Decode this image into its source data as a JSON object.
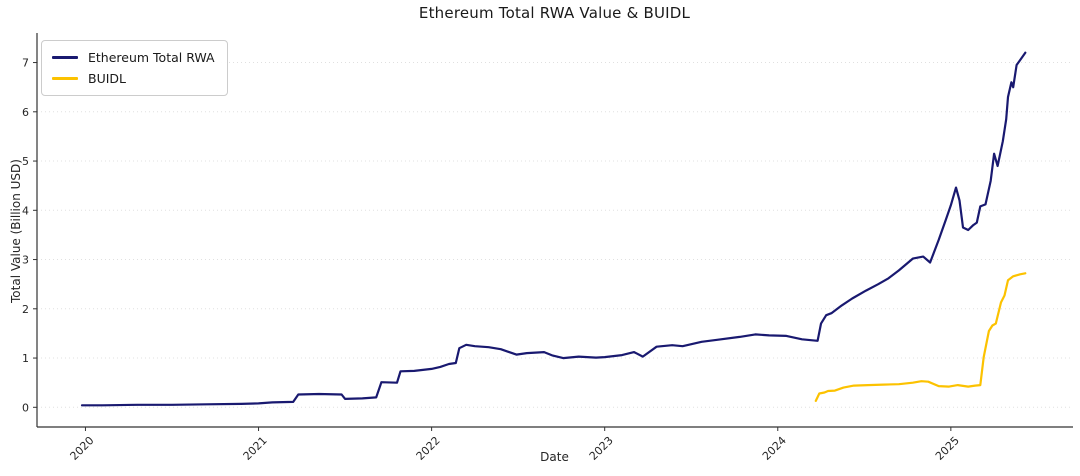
{
  "window": {
    "title": "Ethereum Total RWA Value & BUIDL"
  },
  "chart_data": {
    "type": "line",
    "title": "Ethereum Total RWA Value & BUIDL",
    "xlabel": "Date",
    "ylabel": "Total Value (Billion USD)",
    "xlim": [
      2019.72,
      2025.7
    ],
    "ylim": [
      -0.4,
      7.6
    ],
    "x_ticks": [
      2020,
      2021,
      2022,
      2023,
      2024,
      2025
    ],
    "x_tick_labels": [
      "2020",
      "2021",
      "2022",
      "2023",
      "2024",
      "2025"
    ],
    "y_ticks": [
      0,
      1,
      2,
      3,
      4,
      5,
      6,
      7
    ],
    "y_tick_labels": [
      "0",
      "1",
      "2",
      "3",
      "4",
      "5",
      "6",
      "7"
    ],
    "grid": "horizontal-dotted",
    "legend_position": "upper-left",
    "grid_color": "#e0e0e0",
    "axis_color": "#333333",
    "text_color": "#262626",
    "series": [
      {
        "name": "Ethereum Total RWA",
        "color": "#191970",
        "x": [
          2019.98,
          2020.1,
          2020.3,
          2020.5,
          2020.7,
          2020.9,
          2021.0,
          2021.08,
          2021.2,
          2021.23,
          2021.35,
          2021.48,
          2021.5,
          2021.6,
          2021.68,
          2021.71,
          2021.8,
          2021.82,
          2021.9,
          2022.0,
          2022.05,
          2022.1,
          2022.14,
          2022.16,
          2022.2,
          2022.25,
          2022.33,
          2022.4,
          2022.49,
          2022.55,
          2022.65,
          2022.7,
          2022.76,
          2022.85,
          2022.95,
          2023.0,
          2023.1,
          2023.17,
          2023.22,
          2023.3,
          2023.39,
          2023.45,
          2023.56,
          2023.65,
          2023.78,
          2023.87,
          2023.95,
          2024.05,
          2024.14,
          2024.2,
          2024.23,
          2024.25,
          2024.28,
          2024.31,
          2024.37,
          2024.43,
          2024.51,
          2024.58,
          2024.64,
          2024.7,
          2024.78,
          2024.84,
          2024.88,
          2024.93,
          2024.97,
          2025.0,
          2025.03,
          2025.05,
          2025.07,
          2025.1,
          2025.13,
          2025.15,
          2025.17,
          2025.2,
          2025.23,
          2025.25,
          2025.27,
          2025.3,
          2025.32,
          2025.33,
          2025.35,
          2025.36,
          2025.38,
          2025.4,
          2025.43
        ],
        "y": [
          0.04,
          0.04,
          0.05,
          0.05,
          0.06,
          0.07,
          0.08,
          0.1,
          0.11,
          0.26,
          0.27,
          0.26,
          0.17,
          0.18,
          0.2,
          0.51,
          0.5,
          0.73,
          0.74,
          0.78,
          0.82,
          0.88,
          0.9,
          1.2,
          1.27,
          1.24,
          1.22,
          1.18,
          1.07,
          1.1,
          1.12,
          1.05,
          1.0,
          1.03,
          1.01,
          1.02,
          1.06,
          1.12,
          1.03,
          1.23,
          1.26,
          1.24,
          1.33,
          1.37,
          1.43,
          1.48,
          1.46,
          1.45,
          1.38,
          1.36,
          1.35,
          1.7,
          1.87,
          1.91,
          2.07,
          2.21,
          2.37,
          2.5,
          2.62,
          2.78,
          3.02,
          3.06,
          2.94,
          3.4,
          3.8,
          4.1,
          4.46,
          4.2,
          3.65,
          3.6,
          3.7,
          3.75,
          4.08,
          4.12,
          4.6,
          5.15,
          4.9,
          5.4,
          5.85,
          6.3,
          6.6,
          6.5,
          6.95,
          7.05,
          7.2
        ]
      },
      {
        "name": "BUIDL",
        "color": "#fcc200",
        "x": [
          2024.22,
          2024.24,
          2024.27,
          2024.29,
          2024.33,
          2024.38,
          2024.44,
          2024.52,
          2024.61,
          2024.7,
          2024.78,
          2024.83,
          2024.87,
          2024.93,
          2024.99,
          2025.04,
          2025.1,
          2025.14,
          2025.17,
          2025.19,
          2025.22,
          2025.24,
          2025.26,
          2025.29,
          2025.31,
          2025.33,
          2025.36,
          2025.4,
          2025.43
        ],
        "y": [
          0.13,
          0.28,
          0.3,
          0.33,
          0.34,
          0.4,
          0.44,
          0.45,
          0.46,
          0.47,
          0.5,
          0.53,
          0.52,
          0.43,
          0.42,
          0.45,
          0.42,
          0.44,
          0.45,
          1.02,
          1.55,
          1.66,
          1.7,
          2.13,
          2.27,
          2.58,
          2.66,
          2.7,
          2.72
        ]
      }
    ]
  }
}
